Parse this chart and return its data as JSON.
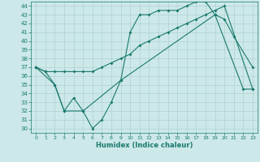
{
  "xlabel": "Humidex (Indice chaleur)",
  "background_color": "#cce8e8",
  "grid_color": "#aacccc",
  "line_color": "#1a7a6e",
  "xlim": [
    -0.5,
    23.5
  ],
  "ylim": [
    29.5,
    44.5
  ],
  "yticks": [
    30,
    31,
    32,
    33,
    34,
    35,
    36,
    37,
    38,
    39,
    40,
    41,
    42,
    43,
    44
  ],
  "xticks": [
    0,
    1,
    2,
    3,
    4,
    5,
    6,
    7,
    8,
    9,
    10,
    11,
    12,
    13,
    14,
    15,
    16,
    17,
    18,
    19,
    20,
    21,
    22,
    23
  ],
  "series1_x": [
    0,
    1,
    2,
    3,
    4,
    5,
    6,
    7,
    8,
    9,
    10,
    11,
    12,
    13,
    14,
    15,
    16,
    17,
    18,
    19,
    20,
    21,
    23
  ],
  "series1_y": [
    37.0,
    36.5,
    35.0,
    32.0,
    33.5,
    32.0,
    30.0,
    31.0,
    33.0,
    35.5,
    41.0,
    43.0,
    43.0,
    43.5,
    43.5,
    43.5,
    44.0,
    44.5,
    44.5,
    43.0,
    42.5,
    40.5,
    37.0
  ],
  "series2_x": [
    0,
    1,
    2,
    3,
    4,
    5,
    6,
    7,
    8,
    9,
    10,
    11,
    12,
    13,
    14,
    15,
    16,
    17,
    18,
    19,
    20,
    23
  ],
  "series2_y": [
    37.0,
    36.5,
    36.5,
    36.5,
    36.5,
    36.5,
    36.5,
    37.0,
    37.5,
    38.0,
    38.5,
    39.5,
    40.0,
    40.5,
    41.0,
    41.5,
    42.0,
    42.5,
    43.0,
    43.5,
    44.0,
    34.5
  ],
  "series3_x": [
    0,
    2,
    3,
    5,
    9,
    19,
    22,
    23
  ],
  "series3_y": [
    37.0,
    35.0,
    32.0,
    32.0,
    35.5,
    43.0,
    34.5,
    34.5
  ]
}
